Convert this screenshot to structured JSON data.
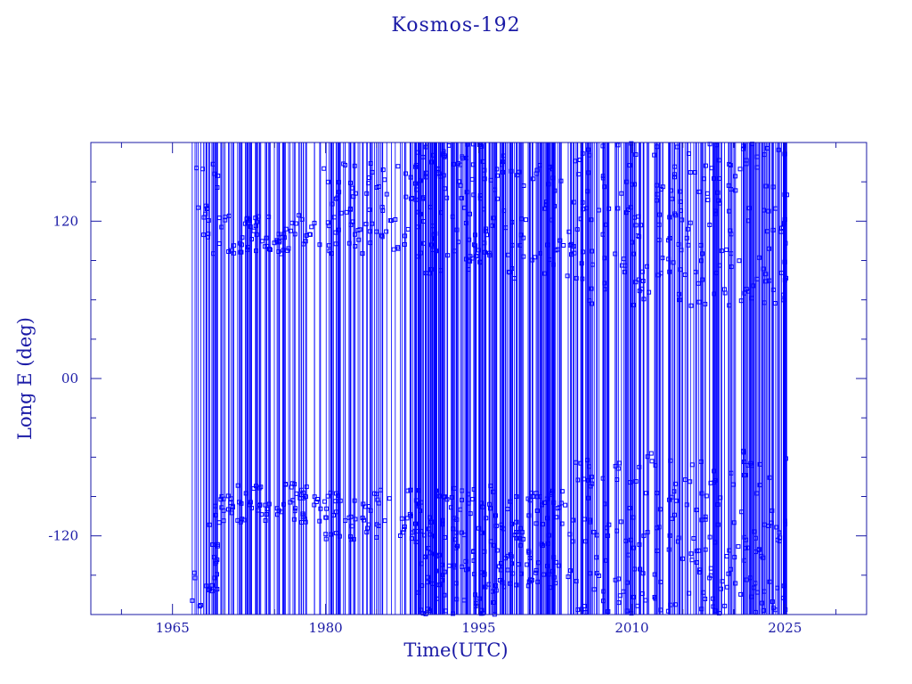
{
  "chart_data": {
    "type": "scatter",
    "title": "Kosmos-192",
    "xlabel": "Time(UTC)",
    "ylabel": "Long E (deg)",
    "xlim": [
      1957,
      2033
    ],
    "ylim": [
      -180,
      180
    ],
    "x_ticks": [
      {
        "value": 1965,
        "label": "1965"
      },
      {
        "value": 1980,
        "label": "1980"
      },
      {
        "value": 1995,
        "label": "1995"
      },
      {
        "value": 2010,
        "label": "2010"
      },
      {
        "value": 2025,
        "label": "2025"
      }
    ],
    "y_ticks": [
      {
        "value": 120,
        "label": "120"
      },
      {
        "value": 0,
        "label": "00"
      },
      {
        "value": -120,
        "label": "-120"
      }
    ],
    "series_color": "#0000ff",
    "axis_color": "#1a1aa6",
    "grid": false,
    "series": [
      {
        "segments": [
          {
            "x0": 1966.9,
            "x1": 1969.5,
            "ranges": [
              [
                95,
                175
              ],
              [
                -175,
                -95
              ]
            ],
            "points": 40
          },
          {
            "x0": 1969.5,
            "x1": 1979.5,
            "ranges": [
              [
                95,
                125
              ],
              [
                -110,
                -80
              ]
            ],
            "points": 140
          },
          {
            "x0": 1979.5,
            "x1": 1989.0,
            "ranges": [
              [
                95,
                165
              ],
              [
                -125,
                -85
              ]
            ],
            "points": 140
          },
          {
            "x0": 1989.0,
            "x1": 1997.0,
            "ranges": [
              [
                80,
                180
              ],
              [
                -180,
                -80
              ]
            ],
            "points": 220
          },
          {
            "x0": 1997.0,
            "x1": 2004.5,
            "ranges": [
              [
                75,
                170
              ],
              [
                -160,
                -85
              ]
            ],
            "points": 150
          },
          {
            "x0": 2004.5,
            "x1": 2025.2,
            "ranges": [
              [
                55,
                180
              ],
              [
                -180,
                -55
              ]
            ],
            "points": 420
          }
        ]
      }
    ]
  }
}
